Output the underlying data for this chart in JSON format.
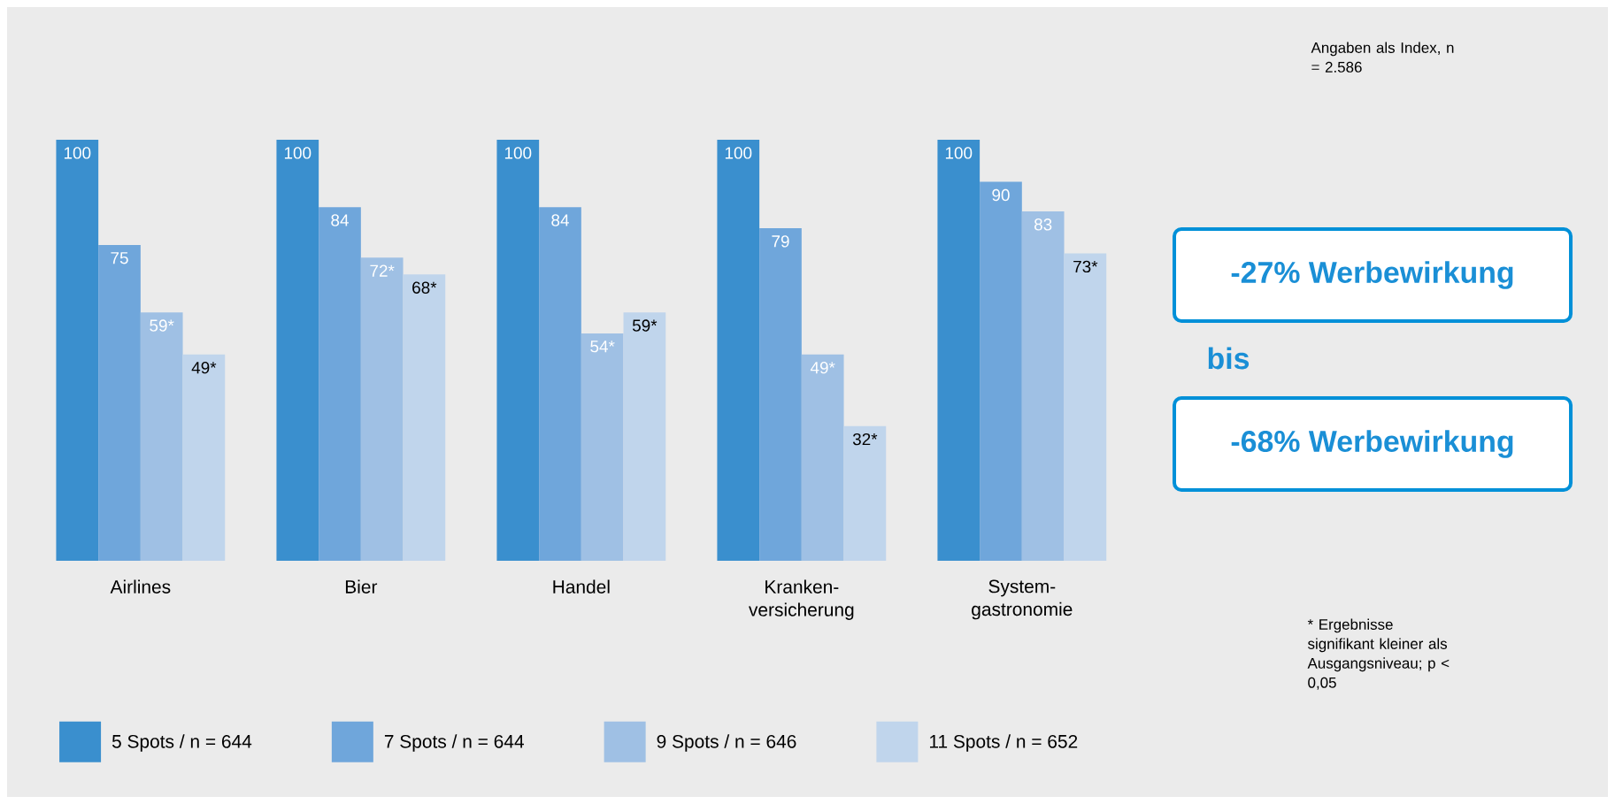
{
  "chart_data": {
    "type": "bar",
    "categories": [
      "Airlines",
      "Bier",
      "Handel",
      "Kranken-versicherung",
      "System-gastronomie"
    ],
    "series": [
      {
        "name": "5 Spots / n = 644",
        "color": "#3a8fce",
        "values": [
          100,
          100,
          100,
          100,
          100
        ],
        "value_labels": [
          "100",
          "100",
          "100",
          "100",
          "100"
        ]
      },
      {
        "name": "7 Spots / n = 644",
        "color": "#6fa6db",
        "values": [
          75,
          84,
          84,
          79,
          90
        ],
        "value_labels": [
          "75",
          "84",
          "84",
          "79",
          "90"
        ]
      },
      {
        "name": "9 Spots / n = 646",
        "color": "#9fc0e4",
        "values": [
          59,
          72,
          54,
          49,
          83
        ],
        "value_labels": [
          "59*",
          "72*",
          "54*",
          "49*",
          "83"
        ]
      },
      {
        "name": "11 Spots / n = 652",
        "color": "#c0d5ec",
        "values": [
          49,
          68,
          59,
          32,
          73
        ],
        "value_labels": [
          "49*",
          "68*",
          "59*",
          "32*",
          "73*"
        ]
      }
    ],
    "legend": "bottom left",
    "annotations": [
      "Angaben als Index, n = 2.586",
      "-27% Werbewirkung",
      "bis",
      "-68% Werbewirkung",
      "* Ergebnisse signifikant kleiner als Ausgangsniveau; p < 0,05"
    ]
  }
}
